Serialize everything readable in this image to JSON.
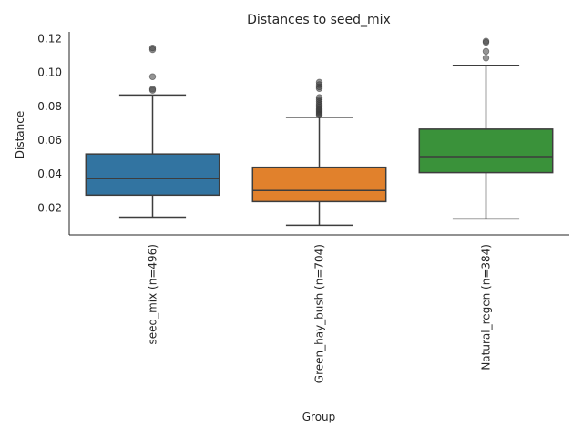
{
  "chart_data": {
    "type": "box",
    "title": "Distances to seed_mix",
    "xlabel": "Group",
    "ylabel": "Distance",
    "ylim": [
      0.004,
      0.124
    ],
    "yticks": [
      0.02,
      0.04,
      0.06,
      0.08,
      0.1,
      0.12
    ],
    "ytick_labels": [
      "0.02",
      "0.04",
      "0.06",
      "0.08",
      "0.10",
      "0.12"
    ],
    "grid": false,
    "legend": "none",
    "groups": [
      {
        "label": "seed_mix (n=496)",
        "color": "#3274a1",
        "whisker_low": 0.0145,
        "q1": 0.0275,
        "median": 0.0372,
        "q3": 0.0518,
        "whisker_high": 0.0867,
        "outliers": [
          0.0895,
          0.0902,
          0.0975,
          0.1135,
          0.1145
        ]
      },
      {
        "label": "Green_hay_bush (n=704)",
        "color": "#e1812c",
        "whisker_low": 0.0097,
        "q1": 0.0237,
        "median": 0.0302,
        "q3": 0.044,
        "whisker_high": 0.0735,
        "outliers": [
          0.0748,
          0.0755,
          0.0762,
          0.077,
          0.0778,
          0.0785,
          0.0795,
          0.0805,
          0.0815,
          0.0828,
          0.084,
          0.0852,
          0.0905,
          0.0915,
          0.0928,
          0.0942
        ]
      },
      {
        "label": "Natural_regen (n=384)",
        "color": "#3a923a",
        "whisker_low": 0.0135,
        "q1": 0.0408,
        "median": 0.0503,
        "q3": 0.0665,
        "whisker_high": 0.1042,
        "outliers": [
          0.1085,
          0.1125,
          0.1178,
          0.1185
        ]
      }
    ]
  }
}
